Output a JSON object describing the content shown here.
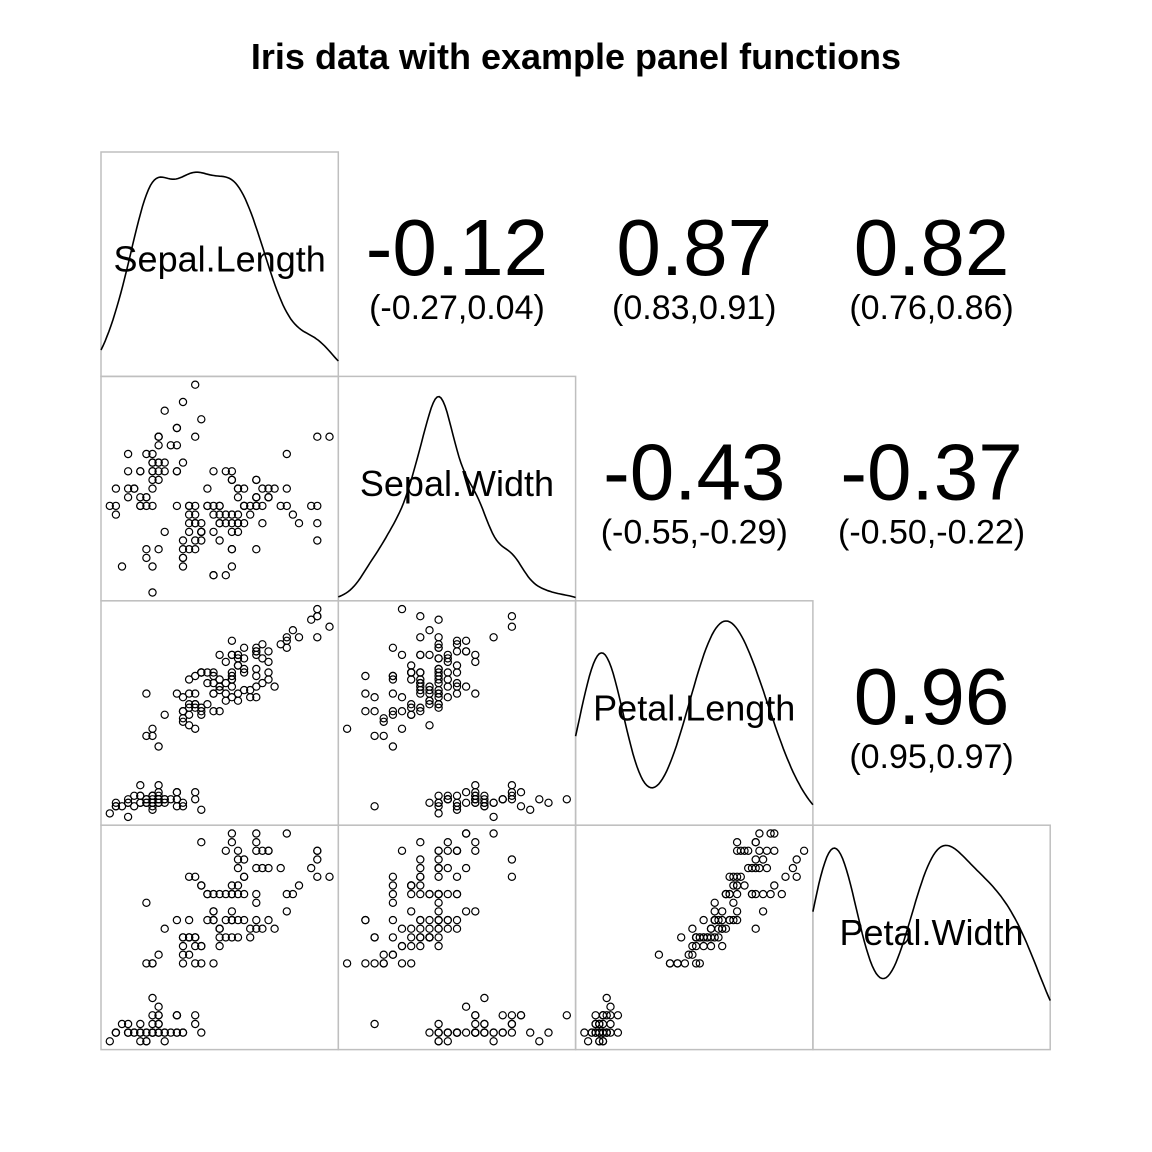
{
  "title": "Iris data with example panel functions",
  "chart_data": {
    "type": "scatter-matrix",
    "title": "Iris data with example panel functions",
    "variables": [
      "Sepal.Length",
      "Sepal.Width",
      "Petal.Length",
      "Petal.Width"
    ],
    "upper_panel": "correlation",
    "diagonal_panel": "density",
    "lower_panel": "scatter",
    "correlations": [
      {
        "row": 0,
        "col": 1,
        "r": "-0.12",
        "ci": "(-0.27,0.04)"
      },
      {
        "row": 0,
        "col": 2,
        "r": "0.87",
        "ci": "(0.83,0.91)"
      },
      {
        "row": 0,
        "col": 3,
        "r": "0.82",
        "ci": "(0.76,0.86)"
      },
      {
        "row": 1,
        "col": 2,
        "r": "-0.43",
        "ci": "(-0.55,-0.29)"
      },
      {
        "row": 1,
        "col": 3,
        "r": "-0.37",
        "ci": "(-0.50,-0.22)"
      },
      {
        "row": 2,
        "col": 3,
        "r": "0.96",
        "ci": "(0.95,0.97)"
      }
    ],
    "data": [
      [
        5.1,
        3.5,
        1.4,
        0.2
      ],
      [
        4.9,
        3.0,
        1.4,
        0.2
      ],
      [
        4.7,
        3.2,
        1.3,
        0.2
      ],
      [
        4.6,
        3.1,
        1.5,
        0.2
      ],
      [
        5.0,
        3.6,
        1.4,
        0.2
      ],
      [
        5.4,
        3.9,
        1.7,
        0.4
      ],
      [
        4.6,
        3.4,
        1.4,
        0.3
      ],
      [
        5.0,
        3.4,
        1.5,
        0.2
      ],
      [
        4.4,
        2.9,
        1.4,
        0.2
      ],
      [
        4.9,
        3.1,
        1.5,
        0.1
      ],
      [
        5.4,
        3.7,
        1.5,
        0.2
      ],
      [
        4.8,
        3.4,
        1.6,
        0.2
      ],
      [
        4.8,
        3.0,
        1.4,
        0.1
      ],
      [
        4.3,
        3.0,
        1.1,
        0.1
      ],
      [
        5.8,
        4.0,
        1.2,
        0.2
      ],
      [
        5.7,
        4.4,
        1.5,
        0.4
      ],
      [
        5.4,
        3.9,
        1.3,
        0.4
      ],
      [
        5.1,
        3.5,
        1.4,
        0.3
      ],
      [
        5.7,
        3.8,
        1.7,
        0.3
      ],
      [
        5.1,
        3.8,
        1.5,
        0.3
      ],
      [
        5.4,
        3.4,
        1.7,
        0.2
      ],
      [
        5.1,
        3.7,
        1.5,
        0.4
      ],
      [
        4.6,
        3.6,
        1.0,
        0.2
      ],
      [
        5.1,
        3.3,
        1.7,
        0.5
      ],
      [
        4.8,
        3.4,
        1.9,
        0.2
      ],
      [
        5.0,
        3.0,
        1.6,
        0.2
      ],
      [
        5.0,
        3.4,
        1.6,
        0.4
      ],
      [
        5.2,
        3.5,
        1.5,
        0.2
      ],
      [
        5.2,
        3.4,
        1.4,
        0.2
      ],
      [
        4.7,
        3.2,
        1.6,
        0.2
      ],
      [
        4.8,
        3.1,
        1.6,
        0.2
      ],
      [
        5.4,
        3.4,
        1.5,
        0.4
      ],
      [
        5.2,
        4.1,
        1.5,
        0.1
      ],
      [
        5.5,
        4.2,
        1.4,
        0.2
      ],
      [
        4.9,
        3.1,
        1.5,
        0.2
      ],
      [
        5.0,
        3.2,
        1.2,
        0.2
      ],
      [
        5.5,
        3.5,
        1.3,
        0.2
      ],
      [
        4.9,
        3.6,
        1.4,
        0.1
      ],
      [
        4.4,
        3.0,
        1.3,
        0.2
      ],
      [
        5.1,
        3.4,
        1.5,
        0.2
      ],
      [
        5.0,
        3.5,
        1.3,
        0.3
      ],
      [
        4.5,
        2.3,
        1.3,
        0.3
      ],
      [
        4.4,
        3.2,
        1.3,
        0.2
      ],
      [
        5.0,
        3.5,
        1.6,
        0.6
      ],
      [
        5.1,
        3.8,
        1.9,
        0.4
      ],
      [
        4.8,
        3.0,
        1.4,
        0.3
      ],
      [
        5.1,
        3.8,
        1.6,
        0.2
      ],
      [
        4.6,
        3.2,
        1.4,
        0.2
      ],
      [
        5.3,
        3.7,
        1.5,
        0.2
      ],
      [
        5.0,
        3.3,
        1.4,
        0.2
      ],
      [
        7.0,
        3.2,
        4.7,
        1.4
      ],
      [
        6.4,
        3.2,
        4.5,
        1.5
      ],
      [
        6.9,
        3.1,
        4.9,
        1.5
      ],
      [
        5.5,
        2.3,
        4.0,
        1.3
      ],
      [
        6.5,
        2.8,
        4.6,
        1.5
      ],
      [
        5.7,
        2.8,
        4.5,
        1.3
      ],
      [
        6.3,
        3.3,
        4.7,
        1.6
      ],
      [
        4.9,
        2.4,
        3.3,
        1.0
      ],
      [
        6.6,
        2.9,
        4.6,
        1.3
      ],
      [
        5.2,
        2.7,
        3.9,
        1.4
      ],
      [
        5.0,
        2.0,
        3.5,
        1.0
      ],
      [
        5.9,
        3.0,
        4.2,
        1.5
      ],
      [
        6.0,
        2.2,
        4.0,
        1.0
      ],
      [
        6.1,
        2.9,
        4.7,
        1.4
      ],
      [
        5.6,
        2.9,
        3.6,
        1.3
      ],
      [
        6.7,
        3.1,
        4.4,
        1.4
      ],
      [
        5.6,
        3.0,
        4.5,
        1.5
      ],
      [
        5.8,
        2.7,
        4.1,
        1.0
      ],
      [
        6.2,
        2.2,
        4.5,
        1.5
      ],
      [
        5.6,
        2.5,
        3.9,
        1.1
      ],
      [
        5.9,
        3.2,
        4.8,
        1.8
      ],
      [
        6.1,
        2.8,
        4.0,
        1.3
      ],
      [
        6.3,
        2.5,
        4.9,
        1.5
      ],
      [
        6.1,
        2.8,
        4.7,
        1.2
      ],
      [
        6.4,
        2.9,
        4.3,
        1.3
      ],
      [
        6.6,
        3.0,
        4.4,
        1.4
      ],
      [
        6.8,
        2.8,
        4.8,
        1.4
      ],
      [
        6.7,
        3.0,
        5.0,
        1.7
      ],
      [
        6.0,
        2.9,
        4.5,
        1.5
      ],
      [
        5.7,
        2.6,
        3.5,
        1.0
      ],
      [
        5.5,
        2.4,
        3.8,
        1.1
      ],
      [
        5.5,
        2.4,
        3.7,
        1.0
      ],
      [
        5.8,
        2.7,
        3.9,
        1.2
      ],
      [
        6.0,
        2.7,
        5.1,
        1.6
      ],
      [
        5.4,
        3.0,
        4.5,
        1.5
      ],
      [
        6.0,
        3.4,
        4.5,
        1.6
      ],
      [
        6.7,
        3.1,
        4.7,
        1.5
      ],
      [
        6.3,
        2.3,
        4.4,
        1.3
      ],
      [
        5.6,
        3.0,
        4.1,
        1.3
      ],
      [
        5.5,
        2.5,
        4.0,
        1.3
      ],
      [
        5.5,
        2.6,
        4.4,
        1.2
      ],
      [
        6.1,
        3.0,
        4.6,
        1.4
      ],
      [
        5.8,
        2.6,
        4.0,
        1.2
      ],
      [
        5.0,
        2.3,
        3.3,
        1.0
      ],
      [
        5.6,
        2.7,
        4.2,
        1.3
      ],
      [
        5.7,
        3.0,
        4.2,
        1.2
      ],
      [
        5.7,
        2.9,
        4.2,
        1.3
      ],
      [
        6.2,
        2.9,
        4.3,
        1.3
      ],
      [
        5.1,
        2.5,
        3.0,
        1.1
      ],
      [
        5.7,
        2.8,
        4.1,
        1.3
      ],
      [
        6.3,
        3.3,
        6.0,
        2.5
      ],
      [
        5.8,
        2.7,
        5.1,
        1.9
      ],
      [
        7.1,
        3.0,
        5.9,
        2.1
      ],
      [
        6.3,
        2.9,
        5.6,
        1.8
      ],
      [
        6.5,
        3.0,
        5.8,
        2.2
      ],
      [
        7.6,
        3.0,
        6.6,
        2.1
      ],
      [
        4.9,
        2.5,
        4.5,
        1.7
      ],
      [
        7.3,
        2.9,
        6.3,
        1.8
      ],
      [
        6.7,
        2.5,
        5.8,
        1.8
      ],
      [
        7.2,
        3.6,
        6.1,
        2.5
      ],
      [
        6.5,
        3.2,
        5.1,
        2.0
      ],
      [
        6.4,
        2.7,
        5.3,
        1.9
      ],
      [
        6.8,
        3.0,
        5.5,
        2.1
      ],
      [
        5.7,
        2.5,
        5.0,
        2.0
      ],
      [
        5.8,
        2.8,
        5.1,
        2.4
      ],
      [
        6.4,
        3.2,
        5.3,
        2.3
      ],
      [
        6.5,
        3.0,
        5.5,
        1.8
      ],
      [
        7.7,
        3.8,
        6.7,
        2.2
      ],
      [
        7.7,
        2.6,
        6.9,
        2.3
      ],
      [
        6.0,
        2.2,
        5.0,
        1.5
      ],
      [
        6.9,
        3.2,
        5.7,
        2.3
      ],
      [
        5.6,
        2.8,
        4.9,
        2.0
      ],
      [
        7.7,
        2.8,
        6.7,
        2.0
      ],
      [
        6.3,
        2.7,
        4.9,
        1.8
      ],
      [
        6.7,
        3.3,
        5.7,
        2.1
      ],
      [
        7.2,
        3.2,
        6.0,
        1.8
      ],
      [
        6.2,
        2.8,
        4.8,
        1.8
      ],
      [
        6.1,
        3.0,
        4.9,
        1.8
      ],
      [
        6.4,
        2.8,
        5.6,
        2.1
      ],
      [
        7.2,
        3.0,
        5.8,
        1.6
      ],
      [
        7.4,
        2.8,
        6.1,
        1.9
      ],
      [
        7.9,
        3.8,
        6.4,
        2.0
      ],
      [
        6.4,
        2.8,
        5.6,
        2.2
      ],
      [
        6.3,
        2.8,
        5.1,
        1.5
      ],
      [
        6.1,
        2.6,
        5.6,
        1.4
      ],
      [
        7.7,
        3.0,
        6.1,
        2.3
      ],
      [
        6.3,
        3.4,
        5.6,
        2.4
      ],
      [
        6.4,
        3.1,
        5.5,
        1.8
      ],
      [
        6.0,
        3.0,
        4.8,
        1.8
      ],
      [
        6.9,
        3.1,
        5.4,
        2.1
      ],
      [
        6.7,
        3.1,
        5.6,
        2.4
      ],
      [
        6.9,
        3.1,
        5.1,
        2.3
      ],
      [
        5.8,
        2.7,
        5.1,
        1.9
      ],
      [
        6.8,
        3.2,
        5.9,
        2.3
      ],
      [
        6.7,
        3.3,
        5.7,
        2.5
      ],
      [
        6.7,
        3.0,
        5.2,
        2.3
      ],
      [
        6.3,
        2.5,
        5.0,
        1.9
      ],
      [
        6.5,
        3.0,
        5.2,
        2.0
      ],
      [
        6.2,
        3.4,
        5.4,
        2.3
      ],
      [
        5.9,
        3.0,
        5.1,
        1.8
      ]
    ]
  }
}
